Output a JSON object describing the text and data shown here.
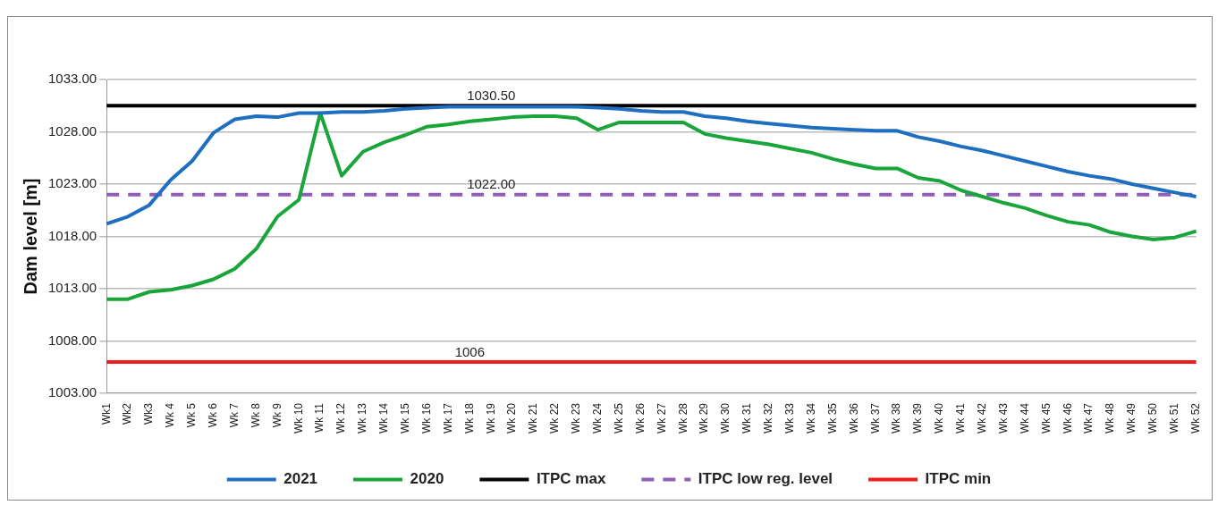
{
  "chart_data": {
    "type": "line",
    "ylabel": "Dam level [m]",
    "categories": [
      "Wk1",
      "Wk2",
      "Wk3",
      "Wk 4",
      "Wk 5",
      "Wk 6",
      "Wk 7",
      "Wk 8",
      "Wk 9",
      "Wk 10",
      "Wk 11",
      "Wk 12",
      "Wk 13",
      "Wk 14",
      "Wk 15",
      "Wk 16",
      "Wk 17",
      "Wk 18",
      "Wk 19",
      "Wk 20",
      "Wk 21",
      "Wk 22",
      "Wk 23",
      "Wk 24",
      "Wk 25",
      "Wk 26",
      "Wk 27",
      "Wk 28",
      "Wk 29",
      "Wk 30",
      "Wk 31",
      "Wk 32",
      "Wk 33",
      "Wk 34",
      "Wk 35",
      "Wk 36",
      "Wk 37",
      "Wk 38",
      "Wk 39",
      "Wk 40",
      "Wk 41",
      "Wk 42",
      "Wk 43",
      "Wk 44",
      "Wk 45",
      "Wk 46",
      "Wk 47",
      "Wk 48",
      "Wk 49",
      "Wk 50",
      "Wk 51",
      "Wk 52"
    ],
    "series": [
      {
        "name": "2021",
        "color": "#1f6fc1",
        "values": [
          1019.2,
          1019.9,
          1021.0,
          1023.4,
          1025.2,
          1027.9,
          1029.2,
          1029.5,
          1029.4,
          1029.8,
          1029.8,
          1029.9,
          1029.9,
          1030.0,
          1030.2,
          1030.3,
          1030.4,
          1030.4,
          1030.4,
          1030.4,
          1030.4,
          1030.4,
          1030.4,
          1030.3,
          1030.2,
          1030.0,
          1029.9,
          1029.9,
          1029.5,
          1029.3,
          1029.0,
          1028.8,
          1028.6,
          1028.4,
          1028.3,
          1028.2,
          1028.1,
          1028.1,
          1027.5,
          1027.1,
          1026.6,
          1026.2,
          1025.7,
          1025.2,
          1024.7,
          1024.2,
          1023.8,
          1023.5,
          1023.0,
          1022.6,
          1022.2,
          1021.8
        ]
      },
      {
        "name": "2020",
        "color": "#1aa53a",
        "values": [
          1012.0,
          1012.0,
          1012.7,
          1012.9,
          1013.3,
          1013.9,
          1014.9,
          1016.8,
          1019.9,
          1021.5,
          1029.8,
          1023.8,
          1026.1,
          1027.0,
          1027.7,
          1028.5,
          1028.7,
          1029.0,
          1029.2,
          1029.4,
          1029.5,
          1029.5,
          1029.3,
          1028.2,
          1028.9,
          1028.9,
          1028.9,
          1028.9,
          1027.8,
          1027.4,
          1027.1,
          1026.8,
          1026.4,
          1026.0,
          1025.4,
          1024.9,
          1024.5,
          1024.5,
          1023.6,
          1023.3,
          1022.4,
          1021.8,
          1021.2,
          1020.7,
          1020.0,
          1019.4,
          1019.1,
          1018.4,
          1018.0,
          1017.7,
          1017.9,
          1018.5
        ]
      },
      {
        "name": "ITPC max",
        "color": "#000000",
        "values": [
          1030.5,
          1030.5,
          1030.5,
          1030.5,
          1030.5,
          1030.5,
          1030.5,
          1030.5,
          1030.5,
          1030.5,
          1030.5,
          1030.5,
          1030.5,
          1030.5,
          1030.5,
          1030.5,
          1030.5,
          1030.5,
          1030.5,
          1030.5,
          1030.5,
          1030.5,
          1030.5,
          1030.5,
          1030.5,
          1030.5,
          1030.5,
          1030.5,
          1030.5,
          1030.5,
          1030.5,
          1030.5,
          1030.5,
          1030.5,
          1030.5,
          1030.5,
          1030.5,
          1030.5,
          1030.5,
          1030.5,
          1030.5,
          1030.5,
          1030.5,
          1030.5,
          1030.5,
          1030.5,
          1030.5,
          1030.5,
          1030.5,
          1030.5,
          1030.5,
          1030.5
        ]
      },
      {
        "name": "ITPC low reg. level",
        "color": "#8e5fb5",
        "line_style": "dashed",
        "values": [
          1022,
          1022,
          1022,
          1022,
          1022,
          1022,
          1022,
          1022,
          1022,
          1022,
          1022,
          1022,
          1022,
          1022,
          1022,
          1022,
          1022,
          1022,
          1022,
          1022,
          1022,
          1022,
          1022,
          1022,
          1022,
          1022,
          1022,
          1022,
          1022,
          1022,
          1022,
          1022,
          1022,
          1022,
          1022,
          1022,
          1022,
          1022,
          1022,
          1022,
          1022,
          1022,
          1022,
          1022,
          1022,
          1022,
          1022,
          1022,
          1022,
          1022,
          1022,
          1022
        ]
      },
      {
        "name": "ITPC min",
        "color": "#ee1c1c",
        "values": [
          1006,
          1006,
          1006,
          1006,
          1006,
          1006,
          1006,
          1006,
          1006,
          1006,
          1006,
          1006,
          1006,
          1006,
          1006,
          1006,
          1006,
          1006,
          1006,
          1006,
          1006,
          1006,
          1006,
          1006,
          1006,
          1006,
          1006,
          1006,
          1006,
          1006,
          1006,
          1006,
          1006,
          1006,
          1006,
          1006,
          1006,
          1006,
          1006,
          1006,
          1006,
          1006,
          1006,
          1006,
          1006,
          1006,
          1006,
          1006,
          1006,
          1006,
          1006,
          1006
        ]
      }
    ],
    "ylim": [
      1003,
      1033
    ],
    "yticks": [
      {
        "value": 1003,
        "label": "1003.00"
      },
      {
        "value": 1008,
        "label": "1008.00"
      },
      {
        "value": 1013,
        "label": "1013.00"
      },
      {
        "value": 1018,
        "label": "1018.00"
      },
      {
        "value": 1023,
        "label": "1023.00"
      },
      {
        "value": 1028,
        "label": "1028.00"
      },
      {
        "value": 1033,
        "label": "1033.00"
      }
    ],
    "annotations": [
      {
        "text": "1030.50",
        "x": "Wk 19",
        "y": 1030.5
      },
      {
        "text": "1022.00",
        "x": "Wk 19",
        "y": 1022
      },
      {
        "text": "1006",
        "x": "Wk 18",
        "y": 1006
      }
    ],
    "grid": "y",
    "legend": "bottom",
    "marker": "none",
    "line_style": "solid"
  }
}
